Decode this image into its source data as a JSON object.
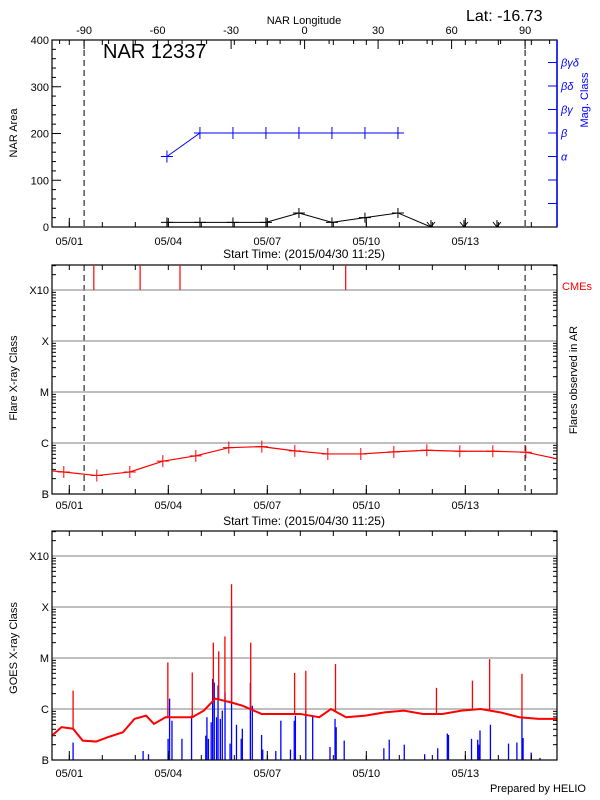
{
  "header": {
    "lat_label": "Lat: -16.73"
  },
  "footer": {
    "credit": "Prepared by HELIO"
  },
  "colors": {
    "axis": "#000000",
    "blue": "#0000ff",
    "red": "#ff0000",
    "grid": "#999999"
  },
  "chart_data": [
    {
      "type": "line",
      "title": "NAR 12337",
      "top_axis_label": "NAR Longitude",
      "top_ticks": [
        -90,
        -60,
        -30,
        0,
        30,
        60,
        90
      ],
      "dashed_longitudes": [
        -90,
        90
      ],
      "xlabel": "Start Time: (2015/04/30 11:25)",
      "xlim": [
        "2015-04-30T11:25",
        "2015-05-15T18:40"
      ],
      "x_ticks": [
        {
          "label": "05/01",
          "t": "2015-05-01T00:00"
        },
        {
          "label": "05/04",
          "t": "2015-05-04T00:00"
        },
        {
          "label": "05/07",
          "t": "2015-05-07T00:00"
        },
        {
          "label": "05/10",
          "t": "2015-05-10T00:00"
        },
        {
          "label": "05/13",
          "t": "2015-05-13T00:00"
        }
      ],
      "ylabel": "NAR Area",
      "ylim": [
        0,
        400
      ],
      "y_ticks": [
        0,
        100,
        200,
        300,
        400
      ],
      "y2label": "Mag. Class",
      "y2_ticks": [
        "α",
        "β",
        "βγ",
        "βδ",
        "βγδ"
      ],
      "area": [
        {
          "t": "2015-05-03T23:00",
          "v": 10
        },
        {
          "t": "2015-05-04T23:00",
          "v": 10
        },
        {
          "t": "2015-05-05T23:00",
          "v": 10
        },
        {
          "t": "2015-05-06T23:00",
          "v": 10
        },
        {
          "t": "2015-05-07T23:00",
          "v": 30
        },
        {
          "t": "2015-05-08T23:00",
          "v": 10
        },
        {
          "t": "2015-05-09T23:00",
          "v": 20
        },
        {
          "t": "2015-05-10T23:00",
          "v": 30
        },
        {
          "t": "2015-05-11T23:00",
          "v": 0
        }
      ],
      "area_arrow_markers": [
        "2015-05-11T23:00",
        "2015-05-12T23:00",
        "2015-05-13T23:00"
      ],
      "mag_class": [
        {
          "t": "2015-05-03T23:00",
          "v": "α"
        },
        {
          "t": "2015-05-04T23:00",
          "v": "β"
        },
        {
          "t": "2015-05-05T23:00",
          "v": "β"
        },
        {
          "t": "2015-05-06T23:00",
          "v": "β"
        },
        {
          "t": "2015-05-07T23:00",
          "v": "β"
        },
        {
          "t": "2015-05-08T23:00",
          "v": "β"
        },
        {
          "t": "2015-05-09T23:00",
          "v": "β"
        },
        {
          "t": "2015-05-10T23:00",
          "v": "β"
        }
      ]
    },
    {
      "type": "line",
      "xlabel": "Start Time: (2015/04/30 11:25)",
      "ylabel": "Flare X-ray Class",
      "y2label": "Flares observed in AR",
      "cme_label": "CMEs",
      "yscale": "log",
      "ylim_flux": [
        1e-07,
        0.0032
      ],
      "y_ticks": [
        {
          "label": "B",
          "f": 1e-07
        },
        {
          "label": "C",
          "f": 1e-06
        },
        {
          "label": "M",
          "f": 1e-05
        },
        {
          "label": "X",
          "f": 0.0001
        },
        {
          "label": "X10",
          "f": 0.001
        }
      ],
      "grid": true,
      "cmes": [
        "2015-05-01T17:50",
        "2015-05-03T03:30",
        "2015-05-04T08:30",
        "2015-05-09T09:00"
      ],
      "background_flux": [
        {
          "t": "2015-04-30T20:00",
          "f": 2.7e-07
        },
        {
          "t": "2015-05-01T20:00",
          "f": 2.3e-07
        },
        {
          "t": "2015-05-02T20:00",
          "f": 2.7e-07
        },
        {
          "t": "2015-05-03T20:00",
          "f": 4.4e-07
        },
        {
          "t": "2015-05-04T20:00",
          "f": 5.6e-07
        },
        {
          "t": "2015-05-05T20:00",
          "f": 8.1e-07
        },
        {
          "t": "2015-05-06T20:00",
          "f": 8.5e-07
        },
        {
          "t": "2015-05-07T20:00",
          "f": 7e-07
        },
        {
          "t": "2015-05-08T20:00",
          "f": 6.1e-07
        },
        {
          "t": "2015-05-09T20:00",
          "f": 6.1e-07
        },
        {
          "t": "2015-05-10T20:00",
          "f": 6.7e-07
        },
        {
          "t": "2015-05-11T20:00",
          "f": 7.2e-07
        },
        {
          "t": "2015-05-12T20:00",
          "f": 6.9e-07
        },
        {
          "t": "2015-05-13T20:00",
          "f": 6.9e-07
        },
        {
          "t": "2015-05-14T20:00",
          "f": 6.6e-07
        },
        {
          "t": "2015-05-15T20:00",
          "f": 4.9e-07
        }
      ]
    },
    {
      "type": "line",
      "xlabel": "",
      "ylabel": "GOES X-ray Class",
      "yscale": "log",
      "y_ticks": [
        {
          "label": "B",
          "f": 1e-07
        },
        {
          "label": "C",
          "f": 1e-06
        },
        {
          "label": "M",
          "f": 1e-05
        },
        {
          "label": "X",
          "f": 0.0001
        },
        {
          "label": "X10",
          "f": 0.001
        }
      ],
      "grid": true,
      "goes_flux": [
        {
          "t": "2015-04-30T11:25",
          "f": 3e-07
        },
        {
          "t": "2015-04-30T18:20",
          "f": 4.4e-07
        },
        {
          "t": "2015-05-01T02:45",
          "f": 4.1e-07
        },
        {
          "t": "2015-05-01T09:45",
          "f": 2.4e-07
        },
        {
          "t": "2015-05-01T19:30",
          "f": 2.3e-07
        },
        {
          "t": "2015-05-02T04:00",
          "f": 2.8e-07
        },
        {
          "t": "2015-05-02T15:00",
          "f": 3.5e-07
        },
        {
          "t": "2015-05-02T23:25",
          "f": 6.4e-07
        },
        {
          "t": "2015-05-03T07:50",
          "f": 7.4e-07
        },
        {
          "t": "2015-05-03T13:35",
          "f": 5.1e-07
        },
        {
          "t": "2015-05-03T22:00",
          "f": 6.9e-07
        },
        {
          "t": "2015-05-04T06:20",
          "f": 6.9e-07
        },
        {
          "t": "2015-05-04T17:25",
          "f": 6.9e-07
        },
        {
          "t": "2015-05-05T01:50",
          "f": 9.3e-07
        },
        {
          "t": "2015-05-05T10:10",
          "f": 1.6e-06
        },
        {
          "t": "2015-05-05T21:30",
          "f": 1.35e-06
        },
        {
          "t": "2015-05-06T05:55",
          "f": 1.16e-06
        },
        {
          "t": "2015-05-06T19:50",
          "f": 8e-07
        },
        {
          "t": "2015-05-07T09:45",
          "f": 8e-07
        },
        {
          "t": "2015-05-07T23:50",
          "f": 8e-07
        },
        {
          "t": "2015-05-08T13:50",
          "f": 6.9e-07
        },
        {
          "t": "2015-05-08T22:15",
          "f": 1e-06
        },
        {
          "t": "2015-05-09T09:15",
          "f": 6.9e-07
        },
        {
          "t": "2015-05-09T23:25",
          "f": 7.4e-07
        },
        {
          "t": "2015-05-10T13:20",
          "f": 8.6e-07
        },
        {
          "t": "2015-05-11T03:20",
          "f": 9.3e-07
        },
        {
          "t": "2015-05-11T17:15",
          "f": 8e-07
        },
        {
          "t": "2015-05-12T07:20",
          "f": 8e-07
        },
        {
          "t": "2015-05-12T21:15",
          "f": 9.3e-07
        },
        {
          "t": "2015-05-13T11:10",
          "f": 1e-06
        },
        {
          "t": "2015-05-14T01:20",
          "f": 8.6e-07
        },
        {
          "t": "2015-05-14T15:15",
          "f": 6.9e-07
        },
        {
          "t": "2015-05-15T05:10",
          "f": 6.4e-07
        },
        {
          "t": "2015-05-15T18:40",
          "f": 6.4e-07
        }
      ],
      "goes_peaks": [
        {
          "t": "2015-05-01T02:45",
          "f": 2.3e-06
        },
        {
          "t": "2015-05-03T23:40",
          "f": 8.2e-06
        },
        {
          "t": "2015-05-04T17:25",
          "f": 5.2e-06
        },
        {
          "t": "2015-05-05T08:45",
          "f": 2e-05
        },
        {
          "t": "2015-05-05T12:40",
          "f": 1.35e-05
        },
        {
          "t": "2015-05-05T17:10",
          "f": 2.65e-05
        },
        {
          "t": "2015-05-05T22:00",
          "f": 0.00028
        },
        {
          "t": "2015-05-06T11:55",
          "f": 2e-05
        },
        {
          "t": "2015-05-07T19:50",
          "f": 5.1e-06
        },
        {
          "t": "2015-05-08T04:00",
          "f": 5.6e-06
        },
        {
          "t": "2015-05-09T01:35",
          "f": 7.6e-06
        },
        {
          "t": "2015-05-12T03:00",
          "f": 2.6e-06
        },
        {
          "t": "2015-05-13T05:10",
          "f": 3.6e-06
        },
        {
          "t": "2015-05-13T17:40",
          "f": 9.5e-06
        },
        {
          "t": "2015-05-14T17:10",
          "f": 4.9e-06
        }
      ],
      "flare_events": [
        {
          "t": "2015-05-01T02:45",
          "f": 2.2e-07
        },
        {
          "t": "2015-05-03T05:40",
          "f": 1.5e-07
        },
        {
          "t": "2015-05-03T09:35",
          "f": 1.3e-07
        },
        {
          "t": "2015-05-03T23:50",
          "f": 2.6e-07
        },
        {
          "t": "2015-05-04T00:55",
          "f": 1.6e-06
        },
        {
          "t": "2015-05-04T02:40",
          "f": 5.9e-07
        },
        {
          "t": "2015-05-04T09:55",
          "f": 2.6e-07
        },
        {
          "t": "2015-05-04T16:55",
          "f": 7.4e-07
        },
        {
          "t": "2015-05-05T03:15",
          "f": 3e-07
        },
        {
          "t": "2015-05-05T04:05",
          "f": 6.9e-07
        },
        {
          "t": "2015-05-05T05:10",
          "f": 2.6e-07
        },
        {
          "t": "2015-05-05T07:10",
          "f": 5.5e-07
        },
        {
          "t": "2015-05-05T08:15",
          "f": 3.9e-06
        },
        {
          "t": "2015-05-05T09:25",
          "f": 3.3e-06
        },
        {
          "t": "2015-05-05T11:05",
          "f": 6.9e-07
        },
        {
          "t": "2015-05-05T12:10",
          "f": 2.9e-06
        },
        {
          "t": "2015-05-05T13:50",
          "f": 6.4e-07
        },
        {
          "t": "2015-05-05T15:15",
          "f": 9.3e-07
        },
        {
          "t": "2015-05-05T17:15",
          "f": 2.1e-06
        },
        {
          "t": "2015-05-05T20:55",
          "f": 2.1e-07
        },
        {
          "t": "2015-05-05T22:00",
          "f": 0.0001
        },
        {
          "t": "2015-05-06T01:35",
          "f": 4.9e-07
        },
        {
          "t": "2015-05-06T05:00",
          "f": 2.6e-07
        },
        {
          "t": "2015-05-06T05:50",
          "f": 4.1e-07
        },
        {
          "t": "2015-05-06T11:40",
          "f": 3.3e-06
        },
        {
          "t": "2015-05-06T13:05",
          "f": 1.16e-06
        },
        {
          "t": "2015-05-06T19:50",
          "f": 3.1e-07
        },
        {
          "t": "2015-05-06T20:40",
          "f": 1.6e-07
        },
        {
          "t": "2015-05-07T06:10",
          "f": 1.5e-07
        },
        {
          "t": "2015-05-07T09:50",
          "f": 5.9e-07
        },
        {
          "t": "2015-05-07T16:50",
          "f": 1.6e-07
        },
        {
          "t": "2015-05-07T19:35",
          "f": 5.9e-07
        },
        {
          "t": "2015-05-07T20:25",
          "f": 7.4e-07
        },
        {
          "t": "2015-05-08T04:00",
          "f": 9.3e-07
        },
        {
          "t": "2015-05-08T09:00",
          "f": 7.4e-07
        },
        {
          "t": "2015-05-08T21:35",
          "f": 1.8e-07
        },
        {
          "t": "2015-05-09T01:15",
          "f": 6.4e-07
        },
        {
          "t": "2015-05-09T02:05",
          "f": 4.4e-07
        },
        {
          "t": "2015-05-09T07:55",
          "f": 2.4e-07
        },
        {
          "t": "2015-05-10T12:45",
          "f": 1.7e-07
        },
        {
          "t": "2015-05-10T16:40",
          "f": 2.5e-07
        },
        {
          "t": "2015-05-11T03:35",
          "f": 2e-07
        },
        {
          "t": "2015-05-11T18:25",
          "f": 1.3e-07
        },
        {
          "t": "2015-05-12T03:55",
          "f": 1.7e-07
        },
        {
          "t": "2015-05-12T10:55",
          "f": 3.3e-07
        },
        {
          "t": "2015-05-12T11:45",
          "f": 3.1e-07
        },
        {
          "t": "2015-05-13T04:30",
          "f": 2.6e-07
        },
        {
          "t": "2015-05-13T09:00",
          "f": 2.5e-07
        },
        {
          "t": "2015-05-13T09:50",
          "f": 2e-07
        },
        {
          "t": "2015-05-13T10:40",
          "f": 3.8e-07
        },
        {
          "t": "2015-05-13T18:15",
          "f": 4.9e-07
        },
        {
          "t": "2015-05-14T07:25",
          "f": 2.1e-07
        },
        {
          "t": "2015-05-14T13:30",
          "f": 2.2e-07
        },
        {
          "t": "2015-05-14T17:10",
          "f": 6.9e-07
        },
        {
          "t": "2015-05-14T18:00",
          "f": 2.7e-07
        },
        {
          "t": "2015-05-14T23:55",
          "f": 1.4e-07
        },
        {
          "t": "2015-05-15T06:20",
          "f": 1.1e-07
        }
      ]
    }
  ]
}
